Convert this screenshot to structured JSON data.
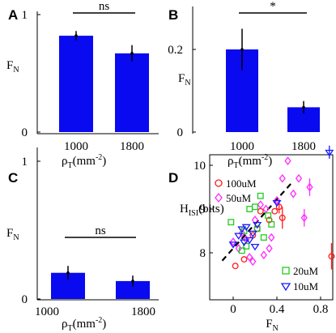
{
  "chart_data": [
    {
      "panel": "A",
      "type": "bar",
      "categories": [
        "1000",
        "1800"
      ],
      "values": [
        0.82,
        0.67
      ],
      "errors": [
        0.04,
        0.07
      ],
      "ylabel": "F",
      "ylabel_sub": "N",
      "xlabel": "ρ",
      "xlabel_sub": "T",
      "xlabel_unit": "(mm",
      "xlabel_sup": "-2",
      "xlabel_close": ")",
      "yticks": [
        "0",
        "1"
      ],
      "ylim": [
        0,
        1
      ],
      "significance": "ns",
      "bar_color": "#0a0af0"
    },
    {
      "panel": "B",
      "type": "bar",
      "categories": [
        "1000",
        "1800"
      ],
      "values": [
        0.2,
        0.06
      ],
      "errors": [
        0.05,
        0.015
      ],
      "ylabel": "F",
      "ylabel_sub": "N",
      "xlabel": "ρ",
      "xlabel_sub": "T",
      "xlabel_unit": "(mm",
      "xlabel_sup": "-2",
      "xlabel_close": ")",
      "yticks": [
        "0",
        "0.2"
      ],
      "ylim": [
        0,
        0.3
      ],
      "significance": "*",
      "bar_color": "#0a0af0"
    },
    {
      "panel": "C",
      "type": "bar",
      "categories": [
        "1000",
        "1800"
      ],
      "values": [
        0.19,
        0.13
      ],
      "errors": [
        0.05,
        0.04
      ],
      "ylabel": "F",
      "ylabel_sub": "N",
      "xlabel": "ρ",
      "xlabel_sub": "T",
      "xlabel_unit": "(mm",
      "xlabel_sup": "-2",
      "xlabel_close": ")",
      "yticks": [
        "0",
        "1"
      ],
      "ylim": [
        0,
        1
      ],
      "significance": "ns",
      "bar_color": "#0a0af0"
    },
    {
      "panel": "D",
      "type": "scatter",
      "xlabel": "F",
      "xlabel_sub": "N",
      "ylabel": "H",
      "ylabel_sub": "ISI",
      "ylabel_rest": "(bits)",
      "xticks": [
        "0",
        "0.4",
        "0.8"
      ],
      "yticks": [
        "8",
        "9",
        "10"
      ],
      "xlim": [
        -0.2,
        0.95
      ],
      "ylim": [
        7.3,
        10.6
      ],
      "trendline": {
        "slope": 2.8,
        "intercept": 8.1,
        "x_range": [
          -0.1,
          0.55
        ]
      },
      "series": [
        {
          "name": "100uM",
          "marker": "circle",
          "color": "#ff1a1a",
          "x": [
            0.1,
            0.18,
            0.22,
            0.25,
            0.33,
            0.38,
            0.42,
            0.45,
            0.02,
            0.9
          ],
          "y": [
            7.85,
            8.4,
            8.55,
            8.95,
            8.75,
            8.95,
            9.05,
            8.8,
            7.7,
            7.92
          ],
          "err": [
            0,
            0,
            0,
            0,
            0,
            0,
            0.15,
            0.25,
            0,
            0.3
          ]
        },
        {
          "name": "50uM",
          "marker": "diamond",
          "color": "#ff2aff",
          "x": [
            0.0,
            0.05,
            0.12,
            0.15,
            0.2,
            0.25,
            0.3,
            0.35,
            0.45,
            0.5,
            0.55,
            0.6,
            0.65,
            0.7,
            0.4,
            0.28,
            0.18,
            0.08,
            0.33
          ],
          "y": [
            8.25,
            8.1,
            8.3,
            7.9,
            8.75,
            9.1,
            9.0,
            8.35,
            9.7,
            10.1,
            9.35,
            9.7,
            8.8,
            9.5,
            9.2,
            7.95,
            7.8,
            8.45,
            8.1
          ],
          "err": [
            0,
            0,
            0,
            0,
            0,
            0,
            0,
            0,
            0,
            0,
            0,
            0,
            0.2,
            0.2,
            0,
            0,
            0,
            0,
            0
          ]
        },
        {
          "name": "20uM",
          "marker": "square",
          "color": "#22cc22",
          "x": [
            -0.02,
            0.1,
            0.15,
            0.2,
            0.22,
            0.28,
            0.32,
            0.35,
            0.08,
            0.12,
            0.25
          ],
          "y": [
            8.7,
            8.5,
            9.0,
            9.05,
            8.55,
            8.35,
            8.85,
            8.65,
            8.05,
            8.15,
            9.3
          ],
          "err": [
            0,
            0,
            0,
            0,
            0,
            0,
            0,
            0,
            0,
            0,
            0
          ]
        },
        {
          "name": "10uM",
          "marker": "triangle-down",
          "color": "#1a1aff",
          "x": [
            0.0,
            0.05,
            0.08,
            0.1,
            0.12,
            0.15,
            0.18,
            0.2,
            0.22,
            0.4,
            0.88
          ],
          "y": [
            8.2,
            8.4,
            8.55,
            8.25,
            8.6,
            8.3,
            8.45,
            8.15,
            8.65,
            9.15,
            10.3
          ],
          "err": [
            0,
            0,
            0,
            0,
            0,
            0,
            0,
            0,
            0,
            0,
            0.15
          ]
        }
      ]
    }
  ]
}
